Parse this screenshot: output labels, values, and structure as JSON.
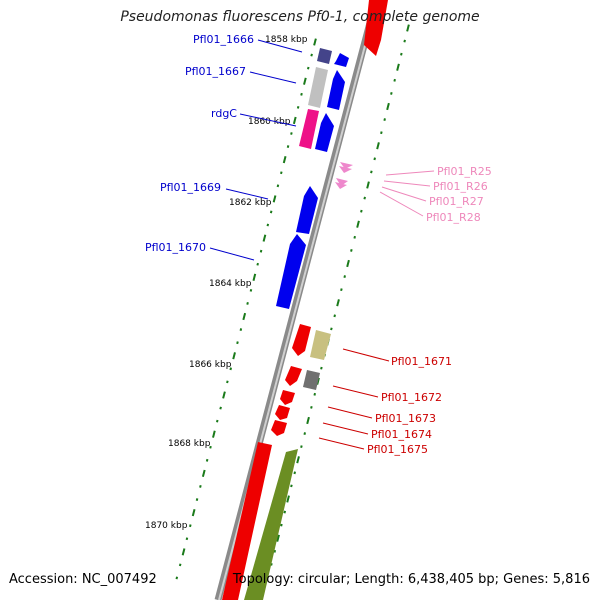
{
  "title": "Pseudomonas fluorescens Pf0-1, complete genome",
  "footer": {
    "accession": "Accession: NC_007492",
    "summary": "Topology: circular; Length: 6,438,405 bp; Genes: 5,816"
  },
  "colors": {
    "backbone": "#8a8a8a",
    "tick": "#1a7a1a",
    "forward_label": "#0000cc",
    "rna_label": "#ee88bb",
    "reverse_label": "#cc0000"
  },
  "scale": {
    "unit": "kbp",
    "labels": [
      "1858 kbp",
      "1860 kbp",
      "1862 kbp",
      "1864 kbp",
      "1866 kbp",
      "1868 kbp",
      "1870 kbp"
    ]
  },
  "gene_labels": {
    "forward": [
      "Pfl01_1666",
      "Pfl01_1667",
      "rdgC",
      "Pfl01_1669",
      "Pfl01_1670"
    ],
    "rna": [
      "Pfl01_R25",
      "Pfl01_R26",
      "Pfl01_R27",
      "Pfl01_R28"
    ],
    "reverse": [
      "Pfl01_1671",
      "Pfl01_1672",
      "Pfl01_1673",
      "Pfl01_1674",
      "Pfl01_1675"
    ]
  },
  "feature_colors": {
    "cds_forward": "#0000ee",
    "pf01_1666": "#44448a",
    "pf01_1667": "#c0c0c0",
    "rdgC": "#ee1188",
    "rna": "#ee88cc",
    "cds_reverse": "#ee0000",
    "pfl01_1671": "#c8c080",
    "pfl01_1672": "#707070",
    "olive": "#6b8e23"
  }
}
